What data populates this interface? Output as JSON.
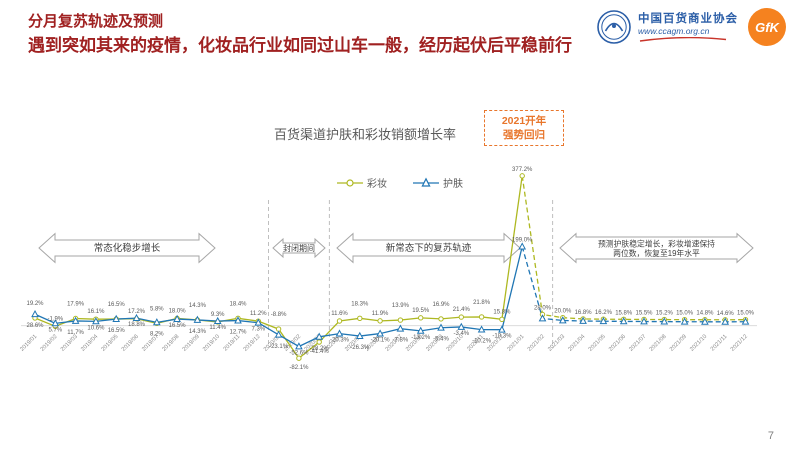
{
  "page": {
    "number": "7"
  },
  "header": {
    "title": "分月复苏轨迹及预测",
    "subtitle": "遇到突如其来的疫情，化妆品行业如同过山车一般，经历起伏后平稳前行",
    "accent_color": "#A02121"
  },
  "logos": {
    "association_name": "中国百货商业协会",
    "association_url": "www.ccagm.org.cn",
    "association_color": "#2B5EA7",
    "gfk_label": "GfK",
    "gfk_color": "#F5821F"
  },
  "chart_data": {
    "type": "line",
    "title": "百货渠道护肤和彩妆销额增长率",
    "xlabel": "",
    "ylabel": "",
    "ylim": [
      -100,
      400
    ],
    "grid": false,
    "legend_position": "top",
    "forecast_start_index": 24,
    "categories": [
      "2019/01",
      "2019/02",
      "2019/03",
      "2019/04",
      "2019/05",
      "2019/06",
      "2019/07",
      "2019/08",
      "2019/09",
      "2019/10",
      "2019/11",
      "2019/12",
      "2020/01",
      "2020/02",
      "2020/03",
      "2020/04",
      "2020/05",
      "2020/06",
      "2020/07",
      "2020/08",
      "2020/09",
      "2020/10",
      "2020/11",
      "2020/12",
      "2021/01",
      "2021/02",
      "2021/03",
      "2021/04",
      "2021/05",
      "2021/06",
      "2021/07",
      "2021/08",
      "2021/09",
      "2021/10",
      "2021/11",
      "2021/12"
    ],
    "series": [
      {
        "name": "彩妆",
        "color": "#AEB821",
        "marker": "circle",
        "values": [
          19.2,
          -1.9,
          17.9,
          16.1,
          16.5,
          17.2,
          5.8,
          18.0,
          14.3,
          9.3,
          18.4,
          11.2,
          -8.8,
          -82.1,
          -41.4,
          11.6,
          18.3,
          11.9,
          13.9,
          19.5,
          16.9,
          21.4,
          21.8,
          15.8,
          377.2,
          28.0,
          20.0,
          16.8,
          16.2,
          15.8,
          15.5,
          15.2,
          15.0,
          14.8,
          14.6,
          15.0
        ],
        "labels": [
          "19.2%",
          "-1.9%",
          "17.9%",
          "16.1%",
          "16.5%",
          "17.2%",
          "5.8%",
          "18.0%",
          "14.3%",
          "9.3%",
          "18.4%",
          "11.2%",
          "-8.8%",
          "-82.1%",
          "-41.4%",
          "11.6%",
          "18.3%",
          "11.9%",
          "13.9%",
          "19.5%",
          "16.9%",
          "21.4%",
          "21.8%",
          "15.8%",
          "377.2%",
          "28.0%",
          "20.0%",
          "16.8%",
          "16.2%",
          "15.8%",
          "15.5%",
          "15.2%",
          "15.0%",
          "14.8%",
          "14.6%",
          "15.0%"
        ]
      },
      {
        "name": "护肤",
        "color": "#2076B4",
        "marker": "triangle",
        "values": [
          28.6,
          5.7,
          11.7,
          10.6,
          16.5,
          18.8,
          8.2,
          16.5,
          14.3,
          11.4,
          12.7,
          7.3,
          -23.1,
          -52.6,
          -28.2,
          -20.3,
          -26.3,
          -20.1,
          -7.8,
          -13.2,
          -5.4,
          -3.4,
          -10.2,
          -10.3,
          199.0,
          18.0,
          13.0,
          11.5,
          11.0,
          10.6,
          10.3,
          10.0,
          9.8,
          9.6,
          9.5,
          9.8
        ],
        "labels": [
          "28.6%",
          "5.7%",
          "11.7%",
          "10.6%",
          "16.5%",
          "18.8%",
          "8.2%",
          "16.5%",
          "14.3%",
          "11.4%",
          "12.7%",
          "7.3%",
          "-23.1%",
          "-52.6%",
          "-28.2%",
          "-20.3%",
          "-26.3%",
          "-20.1%",
          "-7.8%",
          "-13.2%",
          "-5.4%",
          "-3.4%",
          "-10.2%",
          "-10.3%",
          "199.0%",
          null,
          null,
          null,
          null,
          null,
          null,
          null,
          null,
          null,
          null,
          null
        ]
      }
    ],
    "annotations": [
      {
        "lines": [
          "常态化稳步增长"
        ]
      },
      {
        "lines": [
          "封闭期间"
        ]
      },
      {
        "lines": [
          "新常态下的复苏轨迹"
        ]
      },
      {
        "lines": [
          "预测护肤稳定增长，彩妆增速保持",
          "两位数，恢复至19年水平"
        ]
      }
    ],
    "callout": {
      "lines": [
        "2021开年",
        "强势回归"
      ],
      "color": "#E8762C"
    }
  }
}
